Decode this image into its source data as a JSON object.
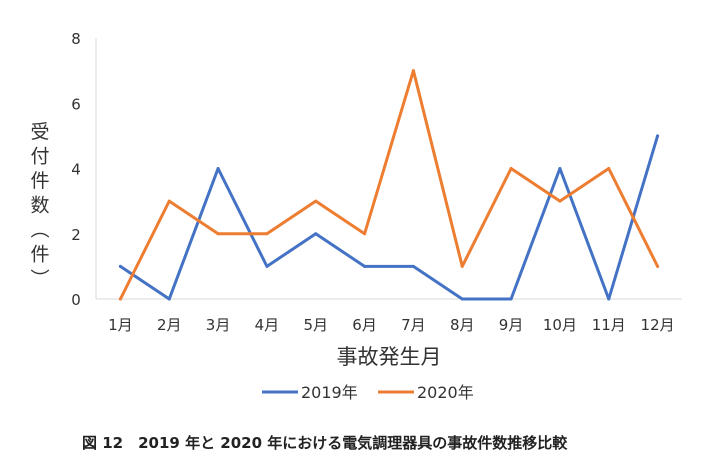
{
  "chart_data": {
    "type": "line",
    "categories": [
      "1月",
      "2月",
      "3月",
      "4月",
      "5月",
      "6月",
      "7月",
      "8月",
      "9月",
      "10月",
      "11月",
      "12月"
    ],
    "series": [
      {
        "name": "2019年",
        "color": "#4472C4",
        "values": [
          1,
          0,
          4,
          1,
          2,
          1,
          1,
          0,
          0,
          4,
          0,
          5
        ]
      },
      {
        "name": "2020年",
        "color": "#ED7D31",
        "values": [
          0,
          3,
          2,
          2,
          3,
          2,
          7,
          1,
          4,
          3,
          4,
          1
        ]
      }
    ],
    "yticks": [
      0,
      2,
      4,
      6,
      8
    ],
    "ylim": [
      0,
      8
    ],
    "xlabel": "事故発生月",
    "ylabel": "受付件数（件）",
    "grid": false,
    "legend_position": "bottom"
  },
  "caption": "図 12　2019 年と 2020 年における電気調理器具の事故件数推移比較"
}
